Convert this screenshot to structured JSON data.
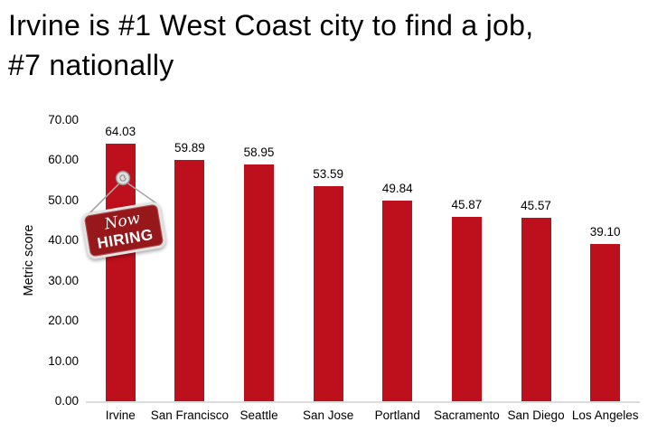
{
  "title": {
    "line1": "Irvine is #1 West Coast city to find a job,",
    "line2": "#7 nationally"
  },
  "badge": {
    "line1": "Now",
    "line2": "HIRING",
    "bg_color": "#97181b"
  },
  "chart_data": {
    "type": "bar",
    "title": "Irvine is #1 West Coast city to find a job, #7 nationally",
    "categories": [
      "Irvine",
      "San Francisco",
      "Seattle",
      "San Jose",
      "Portland",
      "Sacramento",
      "San Diego",
      "Los Angeles"
    ],
    "values": [
      64.03,
      59.89,
      58.95,
      53.59,
      49.84,
      45.87,
      45.57,
      39.1
    ],
    "value_labels": [
      "64.03",
      "59.89",
      "58.95",
      "53.59",
      "49.84",
      "45.87",
      "45.57",
      "39.10"
    ],
    "xlabel": "",
    "ylabel": "Metric score",
    "ylim": [
      0,
      70
    ],
    "y_ticks": [
      "0.00",
      "10.00",
      "20.00",
      "30.00",
      "40.00",
      "50.00",
      "60.00",
      "70.00"
    ],
    "grid": false,
    "legend": false,
    "bar_color": "#be0f1c",
    "axis_line_color": "#dcdcdc"
  }
}
